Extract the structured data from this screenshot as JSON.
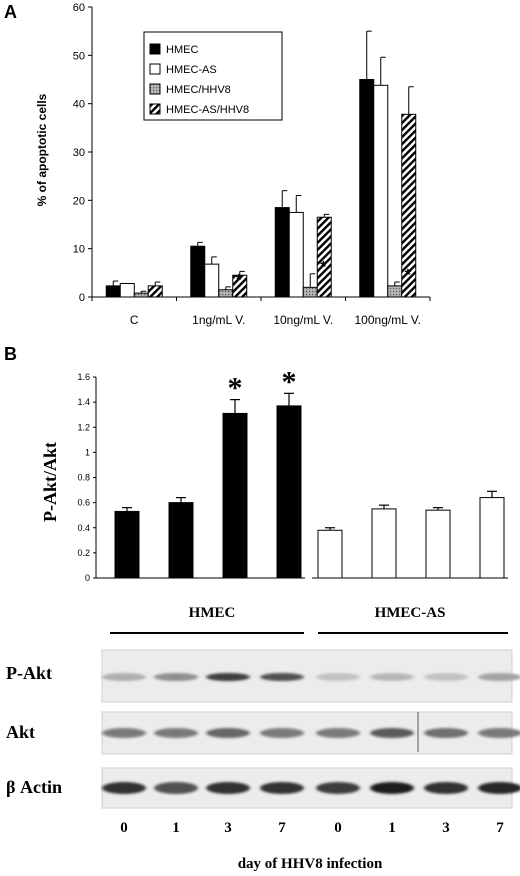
{
  "panel_a": {
    "label": "A",
    "chart_data": {
      "type": "bar",
      "ylabel": "% of apoptotic cells",
      "ylim": [
        0,
        60
      ],
      "yticks": [
        0,
        10,
        20,
        30,
        40,
        50,
        60
      ],
      "categories": [
        "C",
        "1ng/mL V.",
        "10ng/mL V.",
        "100ng/mL V."
      ],
      "series": [
        {
          "name": "HMEC",
          "values": [
            2.3,
            10.5,
            18.5,
            45
          ],
          "errors": [
            1.0,
            0.8,
            3.5,
            10
          ],
          "color": "#000000",
          "pattern": "solid"
        },
        {
          "name": "HMEC-AS",
          "values": [
            2.8,
            6.8,
            17.5,
            43.8
          ],
          "errors": [
            0.0,
            1.5,
            3.5,
            5.8
          ],
          "color": "#ffffff",
          "pattern": "open"
        },
        {
          "name": "HMEC/HHV8",
          "values": [
            0.8,
            1.5,
            2.0,
            2.3
          ],
          "errors": [
            0.4,
            0.6,
            2.8,
            0.8
          ],
          "color": "#999999",
          "pattern": "dotted"
        },
        {
          "name": "HMEC-AS/HHV8",
          "values": [
            2.3,
            4.5,
            16.5,
            37.8
          ],
          "errors": [
            0.8,
            0.8,
            0.6,
            5.7
          ],
          "color": "#ffffff",
          "pattern": "hatched"
        }
      ],
      "significance": [
        {
          "category": 1,
          "series": 2,
          "label": "*"
        },
        {
          "category": 2,
          "series": 2,
          "label": "*"
        },
        {
          "category": 3,
          "series": 2,
          "label": "*"
        }
      ],
      "legend": "top-left"
    }
  },
  "panel_b": {
    "label": "B",
    "chart_data": {
      "type": "bar",
      "ylabel": "P-Akt/Akt",
      "ylim": [
        0,
        1.6
      ],
      "yticks": [
        "0",
        "0.2",
        "0.4",
        "0.6",
        "0.8",
        "1",
        "1.2",
        "1.4",
        "1.6"
      ],
      "groups": [
        {
          "name": "HMEC",
          "x": [
            "0",
            "1",
            "3",
            "7"
          ],
          "values": [
            0.53,
            0.6,
            1.31,
            1.37
          ],
          "errors": [
            0.03,
            0.04,
            0.11,
            0.1
          ],
          "color": "#000000",
          "stars": [
            false,
            false,
            true,
            false
          ]
        },
        {
          "name": "HMEC-AS",
          "x": [
            "0",
            "1",
            "3",
            "7"
          ],
          "values": [
            0.38,
            0.55,
            0.54,
            0.64
          ],
          "errors": [
            0.02,
            0.03,
            0.02,
            0.05
          ],
          "color": "#ffffff",
          "stars": [
            false,
            false,
            false,
            false
          ]
        }
      ],
      "star_label": "*"
    },
    "stars": [
      "*",
      "*"
    ],
    "group_labels": [
      "HMEC",
      "HMEC-AS"
    ],
    "blot_rows": [
      {
        "label": "P-Akt",
        "intensity": [
          0.3,
          0.45,
          0.85,
          0.75,
          0.2,
          0.25,
          0.2,
          0.35
        ]
      },
      {
        "label": "Akt",
        "intensity": [
          0.55,
          0.55,
          0.65,
          0.55,
          0.55,
          0.7,
          0.6,
          0.55
        ]
      },
      {
        "label": "β Actin",
        "intensity": [
          0.9,
          0.75,
          0.9,
          0.9,
          0.85,
          1.0,
          0.9,
          0.95
        ]
      }
    ],
    "lane_labels": [
      "0",
      "1",
      "3",
      "7",
      "0",
      "1",
      "3",
      "7"
    ],
    "xlabel": "day of  HHV8 infection"
  }
}
